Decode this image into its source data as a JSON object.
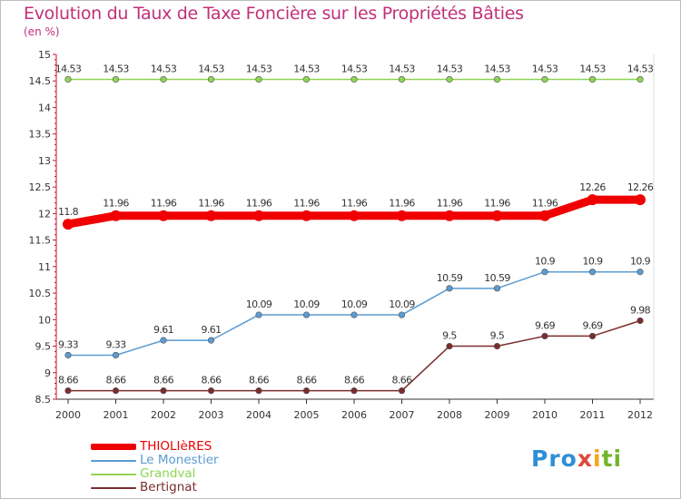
{
  "title": "Evolution du Taux de Taxe Foncière sur les Propriétés Bâties",
  "subtitle": "(en %)",
  "logo": {
    "letters": [
      {
        "char": "P",
        "color": "#2d8fd6"
      },
      {
        "char": "r",
        "color": "#2d8fd6"
      },
      {
        "char": "o",
        "color": "#2d8fd6"
      },
      {
        "char": "x",
        "color": "#e0473a"
      },
      {
        "char": "i",
        "color": "#f2a71b"
      },
      {
        "char": "t",
        "color": "#74b42c"
      },
      {
        "char": "i",
        "color": "#74b42c"
      }
    ]
  },
  "chart_data": {
    "type": "line",
    "title": "Evolution du Taux de Taxe Foncière sur les Propriétés Bâties",
    "ylabel": "(en %)",
    "xlabel": "",
    "x": [
      "2000",
      "2001",
      "2002",
      "2003",
      "2004",
      "2005",
      "2006",
      "2007",
      "2008",
      "2009",
      "2010",
      "2011",
      "2012"
    ],
    "ylim": [
      8.5,
      15
    ],
    "yticks": [
      "8.5",
      "9",
      "9.5",
      "10",
      "10.5",
      "11",
      "11.5",
      "12",
      "12.5",
      "13",
      "13.5",
      "14",
      "14.5",
      "15"
    ],
    "legend_position": "bottom-left",
    "grid": false,
    "series": [
      {
        "name": "THIOLIèRES",
        "color": "#f00000",
        "values": [
          11.8,
          11.96,
          11.96,
          11.96,
          11.96,
          11.96,
          11.96,
          11.96,
          11.96,
          11.96,
          11.96,
          12.26,
          12.26
        ],
        "labels": [
          "11.8",
          "11.96",
          "11.96",
          "11.96",
          "11.96",
          "11.96",
          "11.96",
          "11.96",
          "11.96",
          "11.96",
          "11.96",
          "12.26",
          "12.26"
        ],
        "emphasis": true
      },
      {
        "name": "Le Monestier",
        "color": "#5b9bd1",
        "values": [
          9.33,
          9.33,
          9.61,
          9.61,
          10.09,
          10.09,
          10.09,
          10.09,
          10.59,
          10.59,
          10.9,
          10.9,
          10.9
        ],
        "labels": [
          "9.33",
          "9.33",
          "9.61",
          "9.61",
          "10.09",
          "10.09",
          "10.09",
          "10.09",
          "10.59",
          "10.59",
          "10.9",
          "10.9",
          "10.9"
        ]
      },
      {
        "name": "Grandval",
        "color": "#8fd456",
        "values": [
          14.53,
          14.53,
          14.53,
          14.53,
          14.53,
          14.53,
          14.53,
          14.53,
          14.53,
          14.53,
          14.53,
          14.53,
          14.53
        ],
        "labels": [
          "14.53",
          "14.53",
          "14.53",
          "14.53",
          "14.53",
          "14.53",
          "14.53",
          "14.53",
          "14.53",
          "14.53",
          "14.53",
          "14.53",
          "14.53"
        ]
      },
      {
        "name": "Bertignat",
        "color": "#7b2d2d",
        "values": [
          8.66,
          8.66,
          8.66,
          8.66,
          8.66,
          8.66,
          8.66,
          8.66,
          9.5,
          9.5,
          9.69,
          9.69,
          9.98
        ],
        "labels": [
          "8.66",
          "8.66",
          "8.66",
          "8.66",
          "8.66",
          "8.66",
          "8.66",
          "8.66",
          "9.5",
          "9.5",
          "9.69",
          "9.69",
          "9.98"
        ]
      }
    ]
  }
}
